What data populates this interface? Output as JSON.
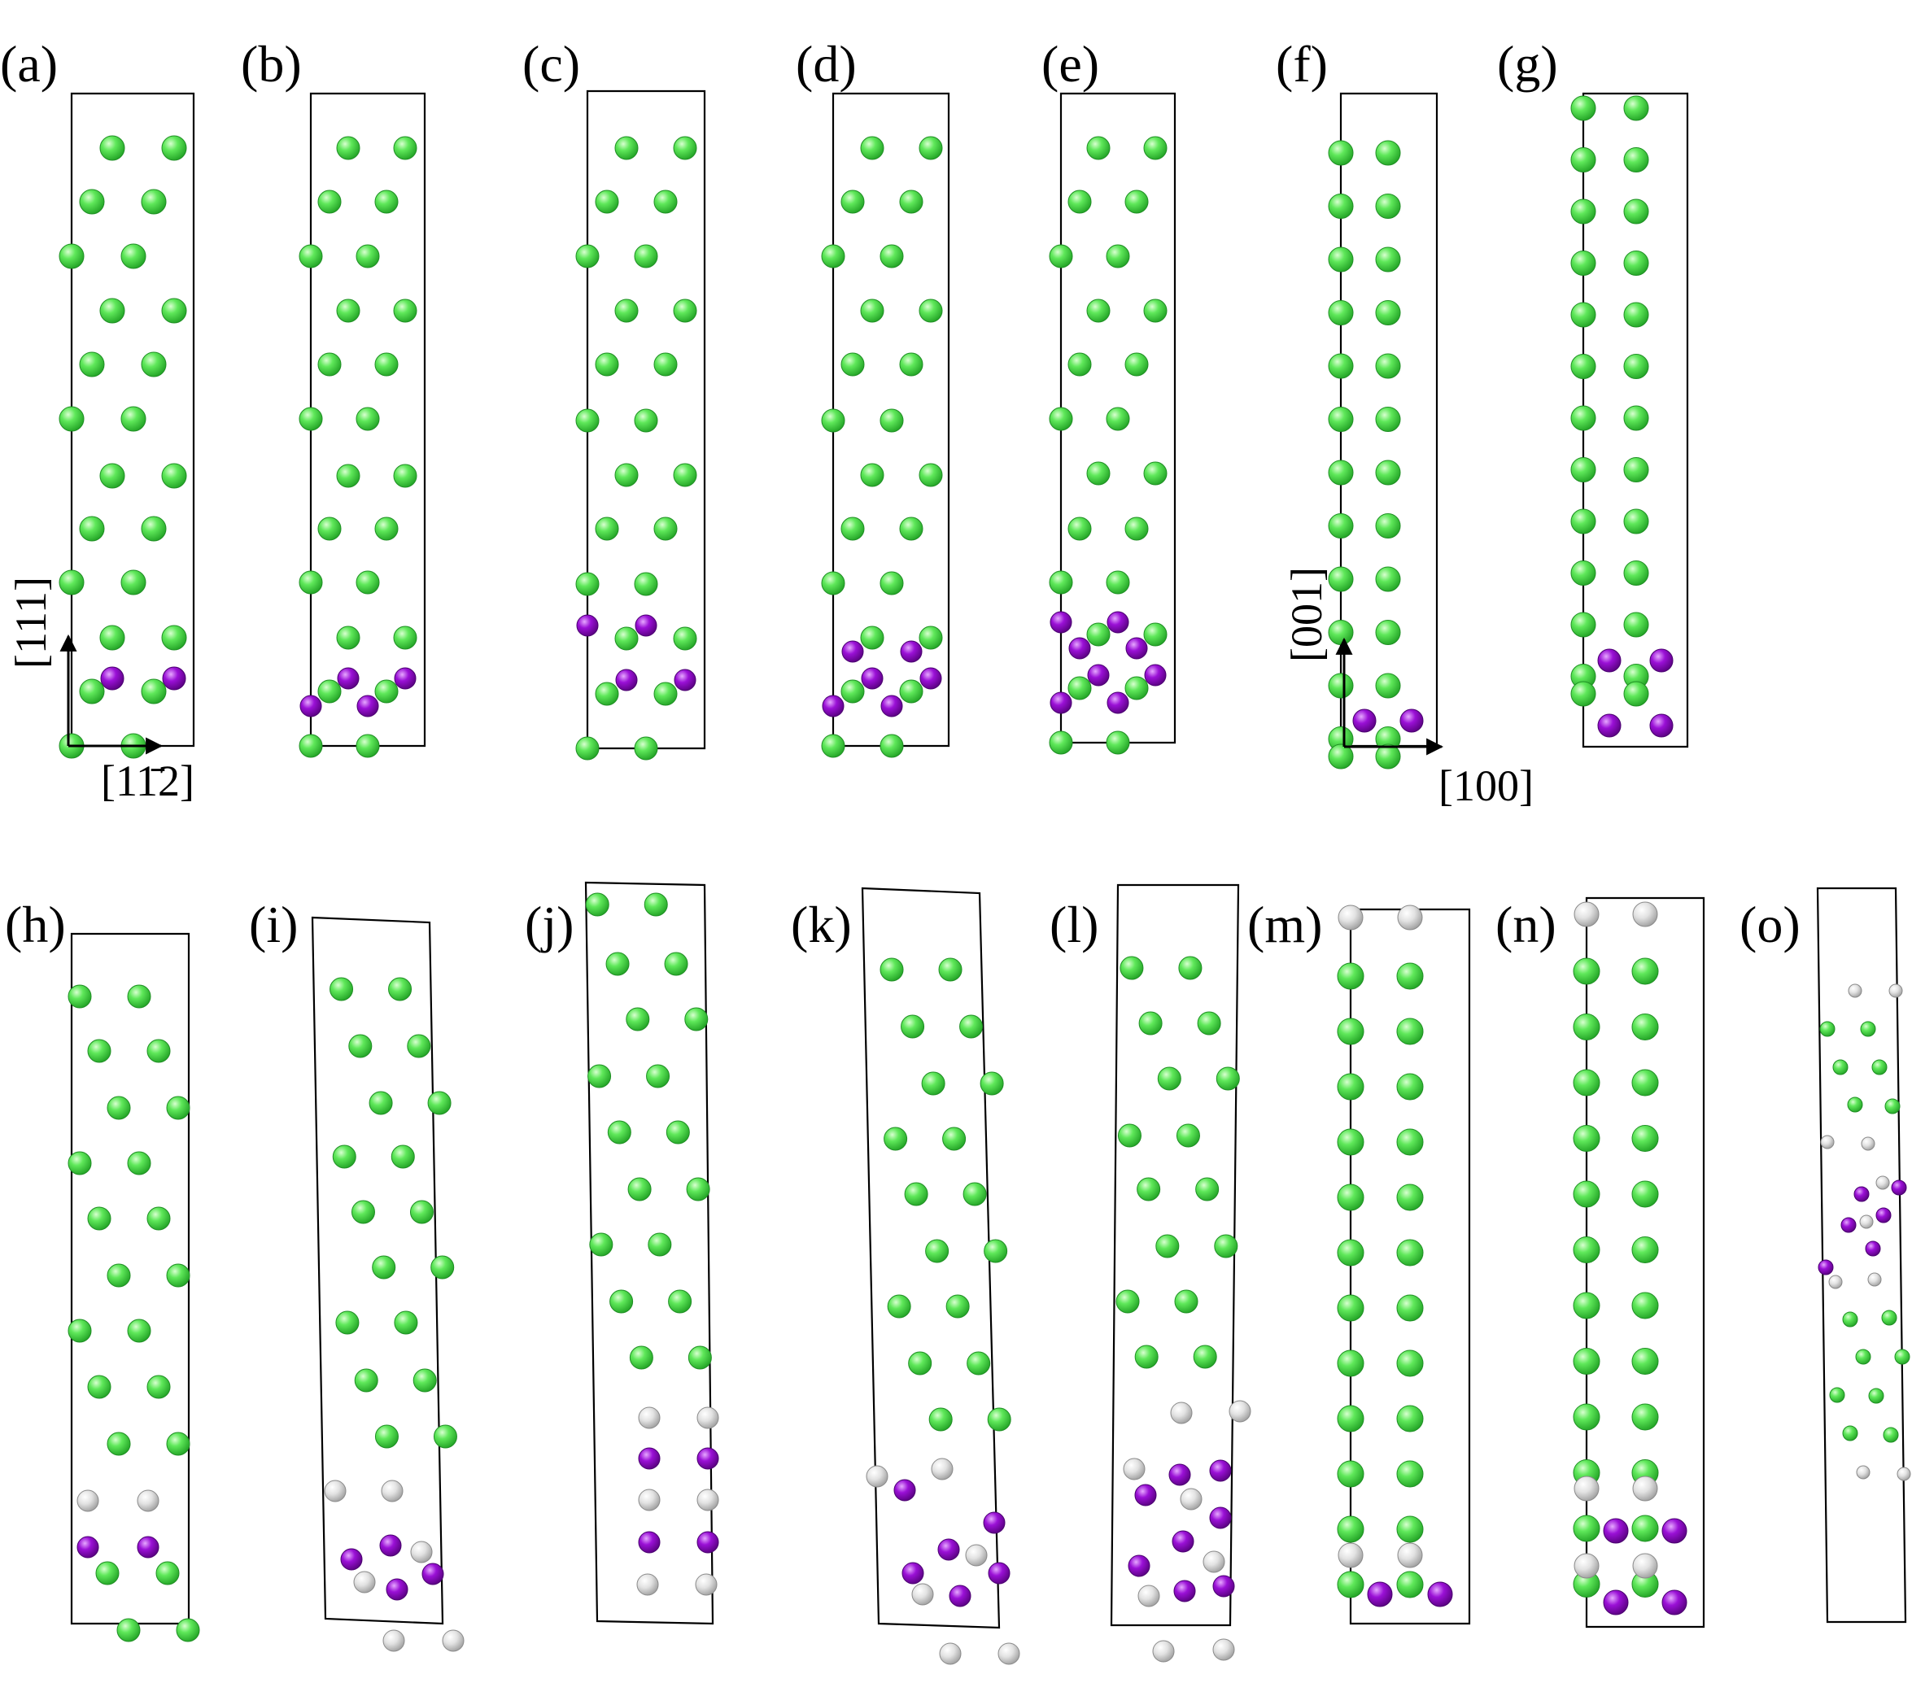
{
  "figure": {
    "panels": [
      {
        "label": "(a)"
      },
      {
        "label": "(b)"
      },
      {
        "label": "(c)"
      },
      {
        "label": "(d)"
      },
      {
        "label": "(e)"
      },
      {
        "label": "(f)"
      },
      {
        "label": "(g)"
      },
      {
        "label": "(h)"
      },
      {
        "label": "(i)"
      },
      {
        "label": "(j)"
      },
      {
        "label": "(k)"
      },
      {
        "label": "(l)"
      },
      {
        "label": "(m)"
      },
      {
        "label": "(n)"
      },
      {
        "label": "(o)"
      }
    ],
    "axes": {
      "vertical_111": "[111]",
      "horizontal_112": "[11̄2]",
      "vertical_001": "[001]",
      "horizontal_100": "[100]"
    },
    "colors": {
      "green_atom": "#3ed63e",
      "purple_atom": "#9a10d6",
      "gray_atom": "#d8d8d8",
      "outline": "#000000"
    }
  }
}
